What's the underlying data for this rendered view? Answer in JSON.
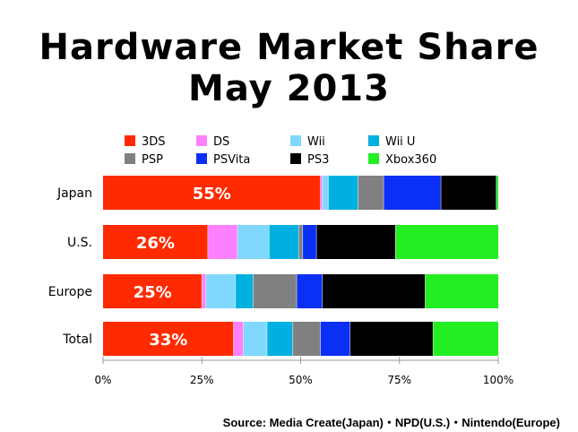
{
  "title_line1": "Hardware Market Share",
  "title_line2": "May 2013",
  "source": "Source: Media Create(Japan)・NPD(U.S.)・Nintendo(Europe)",
  "chart_data": {
    "type": "bar",
    "orientation": "horizontal",
    "stacked": true,
    "categories": [
      "Japan",
      "U.S.",
      "Europe",
      "Total"
    ],
    "xlim": [
      0,
      100
    ],
    "x_ticks": [
      "0%",
      "25%",
      "50%",
      "75%",
      "100%"
    ],
    "legend_position": "top",
    "series": [
      {
        "name": "3DS",
        "color": "#ff2a00",
        "values": [
          55,
          26.5,
          25,
          33
        ]
      },
      {
        "name": "DS",
        "color": "#ff80ff",
        "values": [
          0.5,
          7.5,
          1,
          2.5
        ]
      },
      {
        "name": "Wii",
        "color": "#80d8ff",
        "values": [
          1.5,
          8,
          7.5,
          6
        ]
      },
      {
        "name": "Wii U",
        "color": "#00b0e0",
        "values": [
          7.5,
          7.5,
          4.5,
          6.5
        ]
      },
      {
        "name": "PSP",
        "color": "#808080",
        "values": [
          6.5,
          1,
          11,
          7
        ]
      },
      {
        "name": "PSVita",
        "color": "#0a2ff5",
        "values": [
          14.5,
          3.5,
          6.5,
          7.5
        ]
      },
      {
        "name": "PS3",
        "color": "#000000",
        "values": [
          14,
          20,
          26,
          21
        ]
      },
      {
        "name": "Xbox360",
        "color": "#22ee22",
        "values": [
          0.5,
          26,
          18.5,
          16.5
        ]
      }
    ],
    "data_labels": [
      "55%",
      "26%",
      "25%",
      "33%"
    ]
  }
}
